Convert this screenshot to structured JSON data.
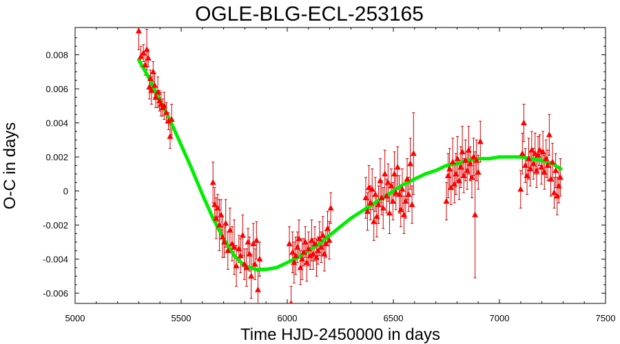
{
  "chart_data": {
    "type": "scatter",
    "title": "OGLE-BLG-ECL-253165",
    "xlabel": "Time HJD-2450000 in days",
    "ylabel": "O-C in days",
    "xlim": [
      5000,
      7500
    ],
    "ylim": [
      -0.0066,
      0.0096
    ],
    "x_ticks": [
      5000,
      5500,
      6000,
      6500,
      7000,
      7500
    ],
    "x_tick_labels": [
      "5000",
      "5500",
      "6000",
      "6500",
      "7000",
      "7500"
    ],
    "y_ticks": [
      -0.006,
      -0.004,
      -0.002,
      0,
      0.002,
      0.004,
      0.006,
      0.008
    ],
    "y_tick_labels": [
      "-0.006",
      "-0.004",
      "-0.002",
      "0",
      "0.002",
      "0.004",
      "0.006",
      "0.008"
    ],
    "grid": false,
    "legend": "none",
    "colors": {
      "points": "#ff0000",
      "errorbars": "#cc0000",
      "fit": "#00ee00"
    },
    "series": [
      {
        "kind": "points_with_errorbars",
        "points": [
          [
            5300,
            0.0094,
            0.0011
          ],
          [
            5310,
            0.0079,
            0.0006
          ],
          [
            5322,
            0.0081,
            0.0005
          ],
          [
            5330,
            0.0074,
            0.0006
          ],
          [
            5338,
            0.0083,
            0.0012
          ],
          [
            5345,
            0.0078,
            0.0005
          ],
          [
            5350,
            0.0061,
            0.0007
          ],
          [
            5355,
            0.0066,
            0.0005
          ],
          [
            5360,
            0.0059,
            0.0008
          ],
          [
            5368,
            0.007,
            0.0006
          ],
          [
            5375,
            0.0062,
            0.0007
          ],
          [
            5380,
            0.0055,
            0.0006
          ],
          [
            5390,
            0.0058,
            0.0009
          ],
          [
            5398,
            0.0053,
            0.0006
          ],
          [
            5405,
            0.0051,
            0.0007
          ],
          [
            5412,
            0.0049,
            0.0005
          ],
          [
            5420,
            0.005,
            0.0008
          ],
          [
            5430,
            0.0046,
            0.0006
          ],
          [
            5440,
            0.0041,
            0.0005
          ],
          [
            5448,
            0.0032,
            0.0007
          ],
          [
            5455,
            0.0042,
            0.0009
          ],
          [
            5650,
            0.0005,
            0.0012
          ],
          [
            5658,
            -0.0008,
            0.001
          ],
          [
            5665,
            -0.0016,
            0.0012
          ],
          [
            5672,
            -0.001,
            0.0008
          ],
          [
            5680,
            -0.002,
            0.0015
          ],
          [
            5688,
            -0.0014,
            0.0009
          ],
          [
            5695,
            -0.0027,
            0.0012
          ],
          [
            5703,
            -0.003,
            0.0009
          ],
          [
            5710,
            -0.0019,
            0.0014
          ],
          [
            5720,
            -0.0035,
            0.0011
          ],
          [
            5730,
            -0.0023,
            0.0013
          ],
          [
            5740,
            -0.0031,
            0.001
          ],
          [
            5750,
            -0.0033,
            0.0016
          ],
          [
            5760,
            -0.0044,
            0.0012
          ],
          [
            5772,
            -0.0034,
            0.0008
          ],
          [
            5780,
            -0.0038,
            0.001
          ],
          [
            5790,
            -0.0026,
            0.0012
          ],
          [
            5798,
            -0.0043,
            0.0009
          ],
          [
            5808,
            -0.0045,
            0.0011
          ],
          [
            5815,
            -0.003,
            0.0008
          ],
          [
            5822,
            -0.0037,
            0.001
          ],
          [
            5830,
            -0.005,
            0.0013
          ],
          [
            5840,
            -0.0031,
            0.0012
          ],
          [
            5848,
            -0.0043,
            0.0009
          ],
          [
            5855,
            -0.0029,
            0.0011
          ],
          [
            5862,
            -0.0058,
            0.0011
          ],
          [
            5870,
            -0.004,
            0.001
          ],
          [
            6010,
            -0.0031,
            0.001
          ],
          [
            6018,
            -0.0066,
            0.001
          ],
          [
            6025,
            -0.0036,
            0.0012
          ],
          [
            6032,
            -0.0042,
            0.0012
          ],
          [
            6040,
            -0.0038,
            0.0011
          ],
          [
            6048,
            -0.0033,
            0.0009
          ],
          [
            6055,
            -0.0028,
            0.0011
          ],
          [
            6062,
            -0.0045,
            0.001
          ],
          [
            6070,
            -0.004,
            0.0012
          ],
          [
            6078,
            -0.0036,
            0.0008
          ],
          [
            6085,
            -0.003,
            0.0009
          ],
          [
            6092,
            -0.0042,
            0.0011
          ],
          [
            6100,
            -0.0034,
            0.001
          ],
          [
            6108,
            -0.0038,
            0.0008
          ],
          [
            6115,
            -0.0029,
            0.0012
          ],
          [
            6122,
            -0.0037,
            0.0009
          ],
          [
            6130,
            -0.0031,
            0.001
          ],
          [
            6138,
            -0.0039,
            0.0011
          ],
          [
            6145,
            -0.0035,
            0.0008
          ],
          [
            6152,
            -0.0028,
            0.001
          ],
          [
            6160,
            -0.0033,
            0.0009
          ],
          [
            6168,
            -0.0026,
            0.0011
          ],
          [
            6175,
            -0.0037,
            0.001
          ],
          [
            6182,
            -0.0031,
            0.0008
          ],
          [
            6190,
            -0.0022,
            0.001
          ],
          [
            6198,
            -0.0029,
            0.0011
          ],
          [
            6205,
            -0.001,
            0.0009
          ],
          [
            6370,
            -0.0004,
            0.0012
          ],
          [
            6378,
            -0.0012,
            0.0011
          ],
          [
            6385,
            0.0002,
            0.0013
          ],
          [
            6392,
            -0.0007,
            0.001
          ],
          [
            6400,
            0.0001,
            0.0012
          ],
          [
            6408,
            -0.0018,
            0.0011
          ],
          [
            6415,
            -0.0002,
            0.001
          ],
          [
            6422,
            -0.0015,
            0.0012
          ],
          [
            6430,
            -0.0008,
            0.0011
          ],
          [
            6438,
            0.0006,
            0.0013
          ],
          [
            6445,
            -0.0004,
            0.001
          ],
          [
            6452,
            -0.001,
            0.0012
          ],
          [
            6460,
            0.001,
            0.0014
          ],
          [
            6468,
            -0.0003,
            0.001
          ],
          [
            6475,
            0.0005,
            0.0011
          ],
          [
            6482,
            -0.0013,
            0.0012
          ],
          [
            6490,
            0.0003,
            0.001
          ],
          [
            6498,
            -0.0006,
            0.0011
          ],
          [
            6505,
            0.001,
            0.0013
          ],
          [
            6512,
            -0.0001,
            0.001
          ],
          [
            6520,
            0.0014,
            0.0012
          ],
          [
            6528,
            -0.0002,
            0.0011
          ],
          [
            6535,
            -0.0011,
            0.001
          ],
          [
            6542,
            0.0001,
            0.0012
          ],
          [
            6550,
            -0.0014,
            0.0011
          ],
          [
            6558,
            -0.0006,
            0.001
          ],
          [
            6565,
            0.0007,
            0.0012
          ],
          [
            6572,
            -0.0002,
            0.001
          ],
          [
            6580,
            0.0016,
            0.0015
          ],
          [
            6588,
            -0.0008,
            0.0011
          ],
          [
            6595,
            0.0022,
            0.0024
          ],
          [
            6750,
            -0.0006,
            0.0011
          ],
          [
            6758,
            0.0009,
            0.0013
          ],
          [
            6765,
            0.0013,
            0.0012
          ],
          [
            6772,
            0.0002,
            0.001
          ],
          [
            6780,
            0.0017,
            0.0014
          ],
          [
            6788,
            0.0004,
            0.0011
          ],
          [
            6795,
            0.001,
            0.0012
          ],
          [
            6802,
            0.0019,
            0.0013
          ],
          [
            6810,
            0.0006,
            0.0011
          ],
          [
            6818,
            0.0014,
            0.0012
          ],
          [
            6825,
            0.0023,
            0.0015
          ],
          [
            6832,
            0.0009,
            0.001
          ],
          [
            6840,
            0.0018,
            0.0012
          ],
          [
            6848,
            0.0012,
            0.0011
          ],
          [
            6855,
            0.0024,
            0.0014
          ],
          [
            6862,
            0.0016,
            0.001
          ],
          [
            6870,
            0.0008,
            0.0012
          ],
          [
            6878,
            0.002,
            0.0011
          ],
          [
            6885,
            -0.0014,
            0.0037
          ],
          [
            6892,
            0.0018,
            0.0012
          ],
          [
            6900,
            0.0011,
            0.001
          ],
          [
            6910,
            0.0029,
            0.0012
          ],
          [
            7100,
            0.0001,
            0.0011
          ],
          [
            7108,
            0.0022,
            0.0012
          ],
          [
            7115,
            0.004,
            0.0011
          ],
          [
            7122,
            0.0015,
            0.001
          ],
          [
            7130,
            0.0009,
            0.0011
          ],
          [
            7138,
            0.0019,
            0.0012
          ],
          [
            7145,
            0.0013,
            0.001
          ],
          [
            7152,
            0.0024,
            0.0011
          ],
          [
            7160,
            0.0016,
            0.0009
          ],
          [
            7168,
            0.0022,
            0.0012
          ],
          [
            7175,
            0.0012,
            0.001
          ],
          [
            7182,
            0.0021,
            0.0011
          ],
          [
            7190,
            0.0024,
            0.0009
          ],
          [
            7198,
            0.0014,
            0.001
          ],
          [
            7205,
            0.0023,
            0.0012
          ],
          [
            7212,
            0.0011,
            0.001
          ],
          [
            7220,
            0.0019,
            0.0011
          ],
          [
            7228,
            0.0015,
            0.0009
          ],
          [
            7235,
            0.0033,
            0.0012
          ],
          [
            7242,
            0.0007,
            0.001
          ],
          [
            7250,
            0.0017,
            0.0011
          ],
          [
            7258,
            -0.0001,
            0.0009
          ],
          [
            7265,
            0.0012,
            0.001
          ],
          [
            7272,
            -0.0003,
            0.0011
          ],
          [
            7280,
            0.0003,
            0.001
          ],
          [
            7287,
            0.0008,
            0.0011
          ]
        ]
      },
      {
        "kind": "fit_line",
        "points": [
          [
            5300,
            0.0077
          ],
          [
            5350,
            0.0066
          ],
          [
            5400,
            0.0053
          ],
          [
            5450,
            0.0041
          ],
          [
            5500,
            0.0027
          ],
          [
            5550,
            0.0013
          ],
          [
            5600,
            -0.0002
          ],
          [
            5650,
            -0.0016
          ],
          [
            5700,
            -0.0028
          ],
          [
            5750,
            -0.0038
          ],
          [
            5800,
            -0.0044
          ],
          [
            5850,
            -0.0046
          ],
          [
            5900,
            -0.0046
          ],
          [
            5950,
            -0.0045
          ],
          [
            6000,
            -0.0042
          ],
          [
            6050,
            -0.0039
          ],
          [
            6100,
            -0.0035
          ],
          [
            6150,
            -0.0031
          ],
          [
            6200,
            -0.0026
          ],
          [
            6250,
            -0.0021
          ],
          [
            6300,
            -0.0016
          ],
          [
            6350,
            -0.0012
          ],
          [
            6400,
            -0.0008
          ],
          [
            6450,
            -0.0004
          ],
          [
            6500,
            0.0
          ],
          [
            6550,
            0.0004
          ],
          [
            6600,
            0.0007
          ],
          [
            6650,
            0.001
          ],
          [
            6700,
            0.0012
          ],
          [
            6750,
            0.0015
          ],
          [
            6800,
            0.0016
          ],
          [
            6850,
            0.0018
          ],
          [
            6900,
            0.0019
          ],
          [
            6950,
            0.0019
          ],
          [
            7000,
            0.002
          ],
          [
            7050,
            0.002
          ],
          [
            7100,
            0.002
          ],
          [
            7150,
            0.0019
          ],
          [
            7200,
            0.0018
          ],
          [
            7250,
            0.0016
          ],
          [
            7290,
            0.0013
          ]
        ]
      }
    ]
  }
}
